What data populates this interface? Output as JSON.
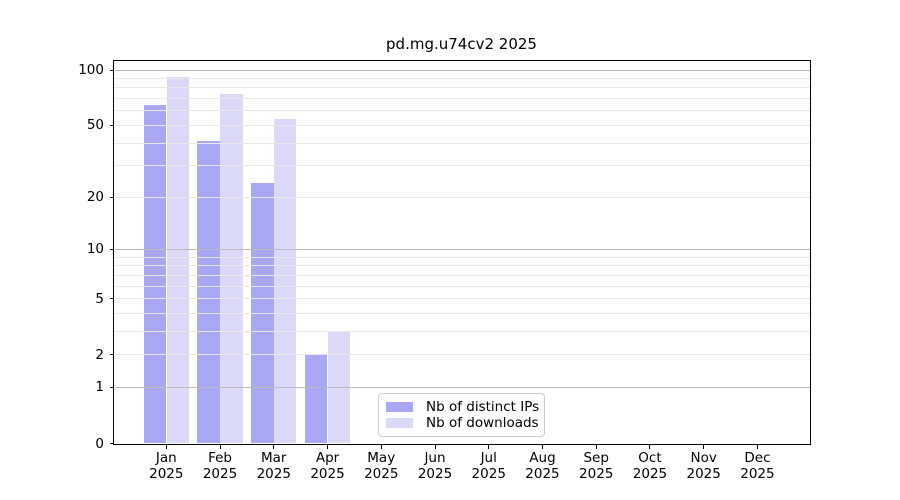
{
  "chart_data": {
    "type": "bar",
    "title": "pd.mg.u74cv2 2025",
    "xlabel": "",
    "ylabel": "",
    "yscale": "log1p",
    "ylim": [
      0,
      112
    ],
    "yticks": [
      100,
      50,
      20,
      10,
      5,
      2,
      1,
      0
    ],
    "categories": [
      "Jan 2025",
      "Feb 2025",
      "Mar 2025",
      "Apr 2025",
      "May 2025",
      "Jun 2025",
      "Jul 2025",
      "Aug 2025",
      "Sep 2025",
      "Oct 2025",
      "Nov 2025",
      "Dec 2025"
    ],
    "series": [
      {
        "name": "Nb of distinct IPs",
        "color": "#a8a8f4",
        "values": [
          65,
          41,
          24,
          2,
          null,
          null,
          null,
          null,
          null,
          null,
          null,
          null
        ]
      },
      {
        "name": "Nb of downloads",
        "color": "#dadaf8",
        "values": [
          92,
          74,
          54,
          3,
          null,
          null,
          null,
          null,
          null,
          null,
          null,
          null
        ]
      }
    ],
    "grid": {
      "major": [
        1,
        10,
        100
      ],
      "minor": [
        2,
        3,
        4,
        5,
        6,
        7,
        8,
        9,
        20,
        30,
        40,
        50,
        60,
        70,
        80,
        90
      ],
      "color_major": "#bbbbbb",
      "color_minor": "#e9e9e9"
    },
    "legend_position": "lower center-left, inside axes",
    "axis_color": "#000000"
  }
}
